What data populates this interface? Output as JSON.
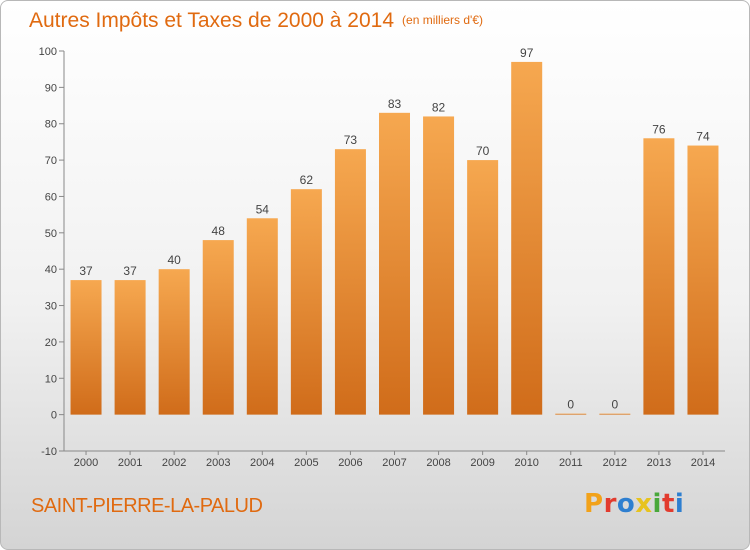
{
  "header": {
    "title": "Autres Impôts et Taxes de 2000 à 2014",
    "unit": "(en milliers d'€)"
  },
  "footer": {
    "commune": "SAINT-PIERRE-LA-PALUD",
    "logo_text": "Proxiti",
    "logo_colors": [
      "#f2a21a",
      "#e23b2e",
      "#2e7fd0",
      "#e7c31f",
      "#49a83b",
      "#e23b2e",
      "#2e7fd0"
    ]
  },
  "chart_data": {
    "type": "bar",
    "title": "Autres Impôts et Taxes de 2000 à 2014",
    "categories": [
      "2000",
      "2001",
      "2002",
      "2003",
      "2004",
      "2005",
      "2006",
      "2007",
      "2008",
      "2009",
      "2010",
      "2011",
      "2012",
      "2013",
      "2014"
    ],
    "values": [
      37,
      37,
      40,
      48,
      54,
      62,
      73,
      83,
      82,
      70,
      97,
      0,
      0,
      76,
      74
    ],
    "data_labels": [
      "37",
      "37",
      "40",
      "48",
      "54",
      "62",
      "73",
      "83",
      "82",
      "70",
      "97",
      "0",
      "0",
      "76",
      "74"
    ],
    "yticks": [
      -10,
      0,
      10,
      20,
      30,
      40,
      50,
      60,
      70,
      80,
      90,
      100
    ],
    "ylim": [
      -10,
      100
    ],
    "grid": false,
    "legend": "none",
    "colors": {
      "bar_light": "#f6a850",
      "bar_dark": "#d06c1a",
      "axis": "#888888",
      "label": "#444444"
    }
  }
}
